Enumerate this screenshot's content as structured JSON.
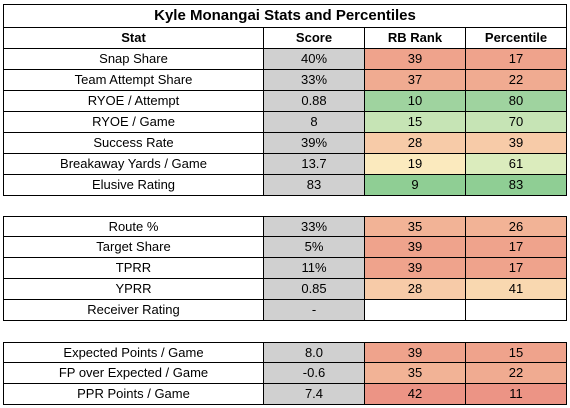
{
  "title": "Kyle Monangai Stats and Percentiles",
  "headers": [
    "Stat",
    "Score",
    "RB Rank",
    "Percentile"
  ],
  "groups": [
    [
      {
        "stat": "Snap Share",
        "score": "40%",
        "rank": "39",
        "pct": "17",
        "rank_color": "#efa38c",
        "pct_color": "#efa38c"
      },
      {
        "stat": "Team Attempt Share",
        "score": "33%",
        "rank": "37",
        "pct": "22",
        "rank_color": "#f0ab91",
        "pct_color": "#f0ab91"
      },
      {
        "stat": "RYOE / Attempt",
        "score": "0.88",
        "rank": "10",
        "pct": "80",
        "rank_color": "#9fd39f",
        "pct_color": "#9fd39f"
      },
      {
        "stat": "RYOE / Game",
        "score": "8",
        "rank": "15",
        "pct": "70",
        "rank_color": "#c6e4b5",
        "pct_color": "#c6e4b5"
      },
      {
        "stat": "Success Rate",
        "score": "39%",
        "rank": "28",
        "pct": "39",
        "rank_color": "#f7cba8",
        "pct_color": "#f7cba8"
      },
      {
        "stat": "Breakaway Yards / Game",
        "score": "13.7",
        "rank": "19",
        "pct": "61",
        "rank_color": "#fbeabe",
        "pct_color": "#dbecbd"
      },
      {
        "stat": "Elusive Rating",
        "score": "83",
        "rank": "9",
        "pct": "83",
        "rank_color": "#8fce94",
        "pct_color": "#8fce94"
      }
    ],
    [
      {
        "stat": "Route %",
        "score": "33%",
        "rank": "35",
        "pct": "26",
        "rank_color": "#f2b396",
        "pct_color": "#f2b396"
      },
      {
        "stat": "Target Share",
        "score": "5%",
        "rank": "39",
        "pct": "17",
        "rank_color": "#efa38c",
        "pct_color": "#efa38c"
      },
      {
        "stat": "TPRR",
        "score": "11%",
        "rank": "39",
        "pct": "17",
        "rank_color": "#efa38c",
        "pct_color": "#efa38c"
      },
      {
        "stat": "YPRR",
        "score": "0.85",
        "rank": "28",
        "pct": "41",
        "rank_color": "#f7cba8",
        "pct_color": "#f9d8b0"
      },
      {
        "stat": "Receiver Rating",
        "score": "-",
        "rank": "",
        "pct": "",
        "rank_color": "#ffffff",
        "pct_color": "#ffffff"
      }
    ],
    [
      {
        "stat": "Expected Points / Game",
        "score": "8.0",
        "rank": "39",
        "pct": "15",
        "rank_color": "#efa38c",
        "pct_color": "#efa38c"
      },
      {
        "stat": "FP over Expected / Game",
        "score": "-0.6",
        "rank": "35",
        "pct": "22",
        "rank_color": "#f2b396",
        "pct_color": "#f0ab91"
      },
      {
        "stat": "PPR Points / Game",
        "score": "7.4",
        "rank": "42",
        "pct": "11",
        "rank_color": "#ec9485",
        "pct_color": "#ec9485"
      }
    ]
  ]
}
